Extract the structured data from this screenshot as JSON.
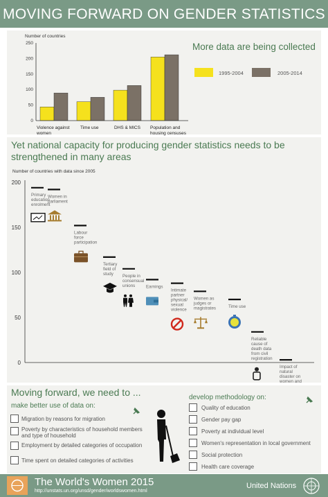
{
  "title": "MOVING FORWARD ON GENDER STATISTICS",
  "chart_data": [
    {
      "type": "bar",
      "title": "More data are being collected",
      "ylabel": "Number of countries",
      "categories": [
        "Violence against women",
        "Time use",
        "DHS & MICS",
        "Population and housing censuses"
      ],
      "series": [
        {
          "name": "1995-2004",
          "values": [
            44,
            61,
            98,
            205
          ]
        },
        {
          "name": "2005-2014",
          "values": [
            89,
            75,
            113,
            212
          ]
        }
      ],
      "ylim": [
        0,
        250
      ],
      "yticks": [
        0,
        50,
        100,
        150,
        200,
        250
      ],
      "colors": [
        "#f5e11d",
        "#7b7166"
      ],
      "legend": "top-right"
    },
    {
      "type": "scatter",
      "title": "Yet national capacity for producing gender statistics needs to be strengthened in many areas",
      "ylabel": "Number of countries with data since 2005",
      "ylim": [
        0,
        200
      ],
      "yticks": [
        0,
        50,
        100,
        150,
        200
      ],
      "points": [
        {
          "label": "Primary education enrolment",
          "value": 194,
          "icon": "blackboard-icon"
        },
        {
          "label": "Women in parliament",
          "value": 192,
          "icon": "parliament-icon"
        },
        {
          "label": "Labour force participation",
          "value": 152,
          "icon": "briefcase-icon"
        },
        {
          "label": "Tertiary field of study",
          "value": 117,
          "icon": "graduation-cap-icon"
        },
        {
          "label": "People in consensual unions",
          "value": 104,
          "icon": "couple-icon"
        },
        {
          "label": "Earnings",
          "value": 92,
          "icon": "wallet-icon"
        },
        {
          "label": "Intimate partner physical/ sexual violence",
          "value": 88,
          "icon": "prohibited-icon"
        },
        {
          "label": "Women as judges or magistrates",
          "value": 79,
          "icon": "scales-icon"
        },
        {
          "label": "Time use",
          "value": 70,
          "icon": "stopwatch-icon"
        },
        {
          "label": "Reliable cause of death data from civil registration",
          "value": 34,
          "icon": "person-icon"
        },
        {
          "label": "Impact of natural disaster on women and men",
          "value": 3,
          "icon": "disaster-icon"
        }
      ]
    }
  ],
  "moving_forward": {
    "heading": "Moving forward, we need to ...",
    "left": {
      "title": "make better use of data on:",
      "items": [
        "Migration by reasons for migration",
        "Poverty by characteristics of household members and type of household",
        "Employment by detailed categories of occupation",
        "Time spent on detailed categories of activities"
      ]
    },
    "right": {
      "title": "develop methodology on:",
      "items": [
        "Quality of education",
        "Gender pay gap",
        "Poverty at individual level",
        "Women's representation in local government",
        "Social protection",
        "Health care coverage"
      ]
    }
  },
  "footer": {
    "title": "The World's Women 2015",
    "url": "http://unstats.un.org/unsd/gender/worldswomen.html",
    "org": "United Nations"
  }
}
